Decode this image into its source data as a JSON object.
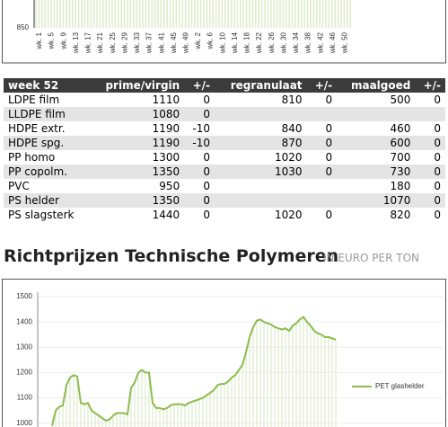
{
  "chart_data": [
    {
      "type": "bar",
      "categories": [
        "wk. 1",
        "wk. 5",
        "wk. 9",
        "wk. 13",
        "wk. 17",
        "wk. 21",
        "wk. 25",
        "wk. 29",
        "wk. 33",
        "wk. 37",
        "wk. 41",
        "wk. 45",
        "wk. 49",
        "wk. 2",
        "wk. 6",
        "wk. 10",
        "wk. 14",
        "wk. 18",
        "wk. 22",
        "wk. 26",
        "wk. 30",
        "wk. 34",
        "wk. 38",
        "wk. 42",
        "wk. 46",
        "wk. 50"
      ],
      "yticks": [
        850
      ],
      "color": "#dfeccd"
    },
    {
      "type": "line",
      "series": [
        {
          "name": "PET glashelder",
          "color": "#8dbb4f",
          "values": [
            990,
            1050,
            1065,
            1070,
            1150,
            1180,
            1190,
            1185,
            1080,
            1075,
            1080,
            1050,
            1040,
            1030,
            1020,
            1010,
            1015,
            1030,
            1040,
            1040,
            1040,
            1035,
            1140,
            1160,
            1200,
            1210,
            1200,
            1200,
            1080,
            1060,
            1060,
            1055,
            1060,
            1070,
            1075,
            1075,
            1075,
            1070,
            1080,
            1085,
            1090,
            1095,
            1100,
            1110,
            1120,
            1130,
            1150,
            1155,
            1155,
            1165,
            1180,
            1190,
            1210,
            1230,
            1280,
            1340,
            1380,
            1405,
            1410,
            1400,
            1395,
            1390,
            1380,
            1375,
            1370,
            1375,
            1365,
            1385,
            1395,
            1410,
            1420,
            1400,
            1385,
            1365,
            1355,
            1350,
            1340,
            1340,
            1335,
            1330
          ]
        }
      ],
      "ylim": [
        985,
        1500
      ],
      "yticks": [
        1000,
        1100,
        1200,
        1300,
        1400,
        1500
      ],
      "grid": true
    }
  ],
  "table": {
    "header": [
      "week 52",
      "prime/virgin",
      "+/-",
      "regranulaat",
      "+/-",
      "maalgoed",
      "+/-"
    ],
    "rows": [
      [
        "LDPE film",
        "1110",
        "0",
        "810",
        "0",
        "500",
        "0"
      ],
      [
        "LLDPE film",
        "1080",
        "0",
        null,
        null,
        null,
        null
      ],
      [
        "HDPE extr.",
        "1190",
        "-10",
        "840",
        "0",
        "460",
        "0"
      ],
      [
        "HDPE spg.",
        "1190",
        "-10",
        "870",
        "0",
        "600",
        "0"
      ],
      [
        "PP homo",
        "1300",
        "0",
        "1020",
        "0",
        "700",
        "0"
      ],
      [
        "PP copolm.",
        "1350",
        "0",
        "1030",
        "0",
        "730",
        "0"
      ],
      [
        "PVC",
        "950",
        "0",
        null,
        null,
        "180",
        "0"
      ],
      [
        "PS helder",
        "1350",
        "0",
        null,
        null,
        "1070",
        "0"
      ],
      [
        "PS slagsterk",
        "1440",
        "0",
        "1020",
        "0",
        "820",
        "0"
      ]
    ]
  },
  "heading": {
    "title": "Richtprijzen Technische Polymeren",
    "unit": "IN EURO PER TON"
  }
}
